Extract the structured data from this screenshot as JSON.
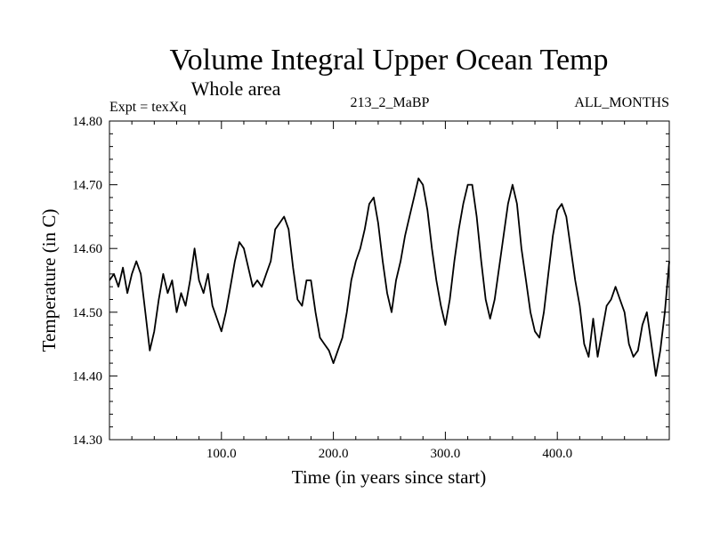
{
  "chart_data": {
    "type": "line",
    "title": "Volume Integral Upper Ocean Temp",
    "subtitle": "Whole area",
    "experiment_label": "Expt = texXq",
    "run_label": "213_2_MaBP",
    "period_label": "ALL_MONTHS",
    "xlabel": "Time (in years since start)",
    "ylabel": "Temperature (in C)",
    "xlim": [
      0,
      500
    ],
    "ylim": [
      14.3,
      14.8
    ],
    "x_ticks": [
      100,
      200,
      300,
      400
    ],
    "x_tick_labels": [
      "100.0",
      "200.0",
      "300.0",
      "400.0"
    ],
    "y_ticks": [
      14.3,
      14.4,
      14.5,
      14.6,
      14.7,
      14.8
    ],
    "y_tick_labels": [
      "14.30",
      "14.40",
      "14.50",
      "14.60",
      "14.70",
      "14.80"
    ],
    "grid": false,
    "series": [
      {
        "name": "Temperature",
        "color": "#000000",
        "x": [
          0,
          4,
          8,
          12,
          16,
          20,
          24,
          28,
          32,
          36,
          40,
          44,
          48,
          52,
          56,
          60,
          64,
          68,
          72,
          76,
          80,
          84,
          88,
          92,
          96,
          100,
          104,
          108,
          112,
          116,
          120,
          124,
          128,
          132,
          136,
          140,
          144,
          148,
          152,
          156,
          160,
          164,
          168,
          172,
          176,
          180,
          184,
          188,
          192,
          196,
          200,
          204,
          208,
          212,
          216,
          220,
          224,
          228,
          232,
          236,
          240,
          244,
          248,
          252,
          256,
          260,
          264,
          268,
          272,
          276,
          280,
          284,
          288,
          292,
          296,
          300,
          304,
          308,
          312,
          316,
          320,
          324,
          328,
          332,
          336,
          340,
          344,
          348,
          352,
          356,
          360,
          364,
          368,
          372,
          376,
          380,
          384,
          388,
          392,
          396,
          400,
          404,
          408,
          412,
          416,
          420,
          424,
          428,
          432,
          436,
          440,
          444,
          448,
          452,
          456,
          460,
          464,
          468,
          472,
          476,
          480,
          484,
          488,
          492,
          496,
          500
        ],
        "values": [
          14.55,
          14.56,
          14.54,
          14.57,
          14.53,
          14.56,
          14.58,
          14.56,
          14.5,
          14.44,
          14.47,
          14.52,
          14.56,
          14.53,
          14.55,
          14.5,
          14.53,
          14.51,
          14.55,
          14.6,
          14.55,
          14.53,
          14.56,
          14.51,
          14.49,
          14.47,
          14.5,
          14.54,
          14.58,
          14.61,
          14.6,
          14.57,
          14.54,
          14.55,
          14.54,
          14.56,
          14.58,
          14.63,
          14.64,
          14.65,
          14.63,
          14.57,
          14.52,
          14.51,
          14.55,
          14.55,
          14.5,
          14.46,
          14.45,
          14.44,
          14.42,
          14.44,
          14.46,
          14.5,
          14.55,
          14.58,
          14.6,
          14.63,
          14.67,
          14.68,
          14.64,
          14.58,
          14.53,
          14.5,
          14.55,
          14.58,
          14.62,
          14.65,
          14.68,
          14.71,
          14.7,
          14.66,
          14.6,
          14.55,
          14.51,
          14.48,
          14.52,
          14.58,
          14.63,
          14.67,
          14.7,
          14.7,
          14.65,
          14.58,
          14.52,
          14.49,
          14.52,
          14.57,
          14.62,
          14.67,
          14.7,
          14.67,
          14.6,
          14.55,
          14.5,
          14.47,
          14.46,
          14.5,
          14.56,
          14.62,
          14.66,
          14.67,
          14.65,
          14.6,
          14.55,
          14.51,
          14.45,
          14.43,
          14.49,
          14.43,
          14.47,
          14.51,
          14.52,
          14.54,
          14.52,
          14.5,
          14.45,
          14.43,
          14.44,
          14.48,
          14.5,
          14.45,
          14.4,
          14.44,
          14.5,
          14.58
        ]
      }
    ]
  }
}
